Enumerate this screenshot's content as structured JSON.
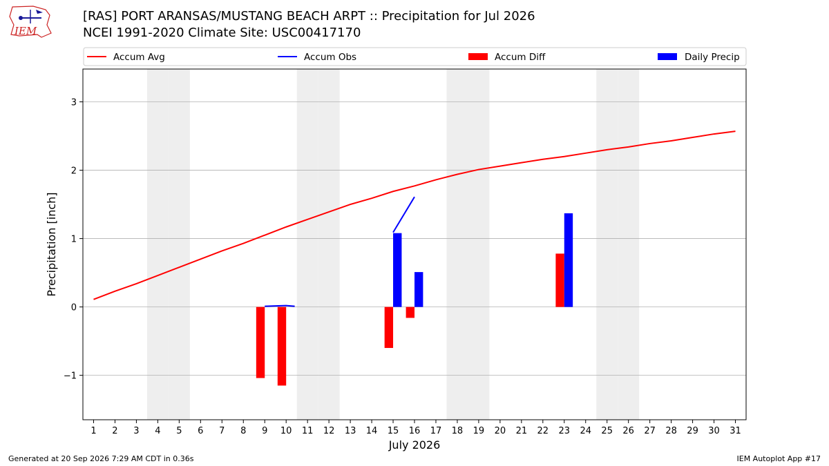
{
  "header": {
    "title_line1": "[RAS] PORT ARANSAS/MUSTANG BEACH ARPT :: Precipitation for Jul 2026",
    "title_line2": "NCEI 1991-2020 Climate Site: USC00417170",
    "logo_text": "IEM"
  },
  "footer": {
    "generated": "Generated at 20 Sep 2026 7:29 AM CDT in 0.36s",
    "app": "IEM Autoplot App #17"
  },
  "colors": {
    "accum_avg": "#ff0000",
    "accum_obs": "#0000ff",
    "accum_diff": "#ff0000",
    "daily_precip": "#0000ff",
    "weekend_shade": "#eeeeee",
    "grid": "#b0b0b0"
  },
  "chart_data": {
    "type": "bar",
    "title": "[RAS] PORT ARANSAS/MUSTANG BEACH ARPT :: Precipitation for Jul 2026",
    "subtitle": "NCEI 1991-2020 Climate Site: USC00417170",
    "xlabel": "July 2026",
    "ylabel": "Precipitation [inch]",
    "xlim": [
      0.5,
      31.5
    ],
    "ylim": [
      -1.65,
      3.48
    ],
    "x_ticks": [
      1,
      2,
      3,
      4,
      5,
      6,
      7,
      8,
      9,
      10,
      11,
      12,
      13,
      14,
      15,
      16,
      17,
      18,
      19,
      20,
      21,
      22,
      23,
      24,
      25,
      26,
      27,
      28,
      29,
      30,
      31
    ],
    "y_ticks": [
      -1,
      0,
      1,
      2,
      3
    ],
    "y_tick_labels": [
      "−1",
      "0",
      "1",
      "2",
      "3"
    ],
    "grid": "horizontal",
    "legend_placement": "top",
    "legend": [
      "Accum Avg",
      "Accum Obs",
      "Accum Diff",
      "Daily Precip"
    ],
    "weekend_days": [
      4,
      5,
      11,
      12,
      18,
      19,
      25,
      26
    ],
    "series": [
      {
        "name": "Accum Avg",
        "kind": "line",
        "x": [
          1,
          2,
          3,
          4,
          5,
          6,
          7,
          8,
          9,
          10,
          11,
          12,
          13,
          14,
          15,
          16,
          17,
          18,
          19,
          20,
          21,
          22,
          23,
          24,
          25,
          26,
          27,
          28,
          29,
          30,
          31
        ],
        "values": [
          0.11,
          0.23,
          0.34,
          0.46,
          0.58,
          0.7,
          0.82,
          0.93,
          1.05,
          1.17,
          1.28,
          1.39,
          1.5,
          1.59,
          1.69,
          1.77,
          1.86,
          1.94,
          2.01,
          2.06,
          2.11,
          2.16,
          2.2,
          2.25,
          2.3,
          2.34,
          2.39,
          2.43,
          2.48,
          2.53,
          2.57
        ]
      },
      {
        "name": "Accum Obs",
        "kind": "line",
        "segments": [
          {
            "x": [
              9,
              10,
              10.4
            ],
            "values": [
              0.01,
              0.02,
              0.01
            ]
          },
          {
            "x": [
              15,
              16
            ],
            "values": [
              1.09,
              1.61
            ]
          }
        ]
      },
      {
        "name": "Accum Diff",
        "kind": "bar",
        "x": [
          9,
          10,
          15,
          16,
          23
        ],
        "values": [
          -1.04,
          -1.15,
          -0.6,
          -0.16,
          0.78
        ]
      },
      {
        "name": "Daily Precip",
        "kind": "bar",
        "x": [
          15,
          16,
          23
        ],
        "values": [
          1.08,
          0.51,
          1.37
        ]
      }
    ]
  }
}
